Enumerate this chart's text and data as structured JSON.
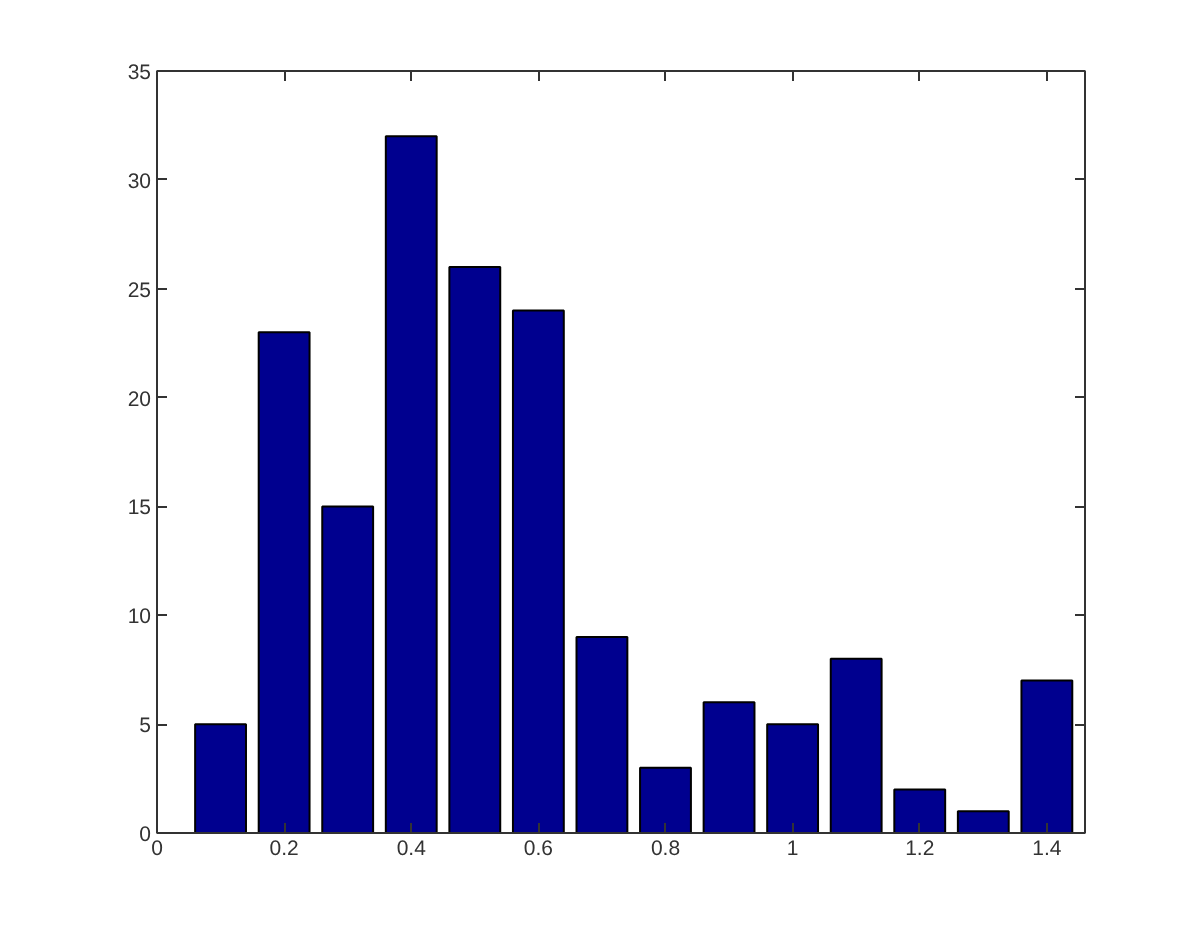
{
  "chart_data": {
    "type": "bar",
    "x": [
      0.1,
      0.2,
      0.3,
      0.4,
      0.5,
      0.6,
      0.7,
      0.8,
      0.9,
      1,
      1.1,
      1.2,
      1.3,
      1.4
    ],
    "values": [
      5,
      23,
      15,
      32,
      26,
      24,
      9,
      3,
      6,
      5,
      8,
      2,
      1,
      7
    ],
    "color": "#00008f",
    "xlim": [
      0,
      1.46
    ],
    "ylim": [
      0,
      35
    ],
    "xticks": [
      0,
      0.2,
      0.4,
      0.6,
      0.8,
      1,
      1.2,
      1.4
    ],
    "yticks": [
      0,
      5,
      10,
      15,
      20,
      25,
      30,
      35
    ]
  }
}
